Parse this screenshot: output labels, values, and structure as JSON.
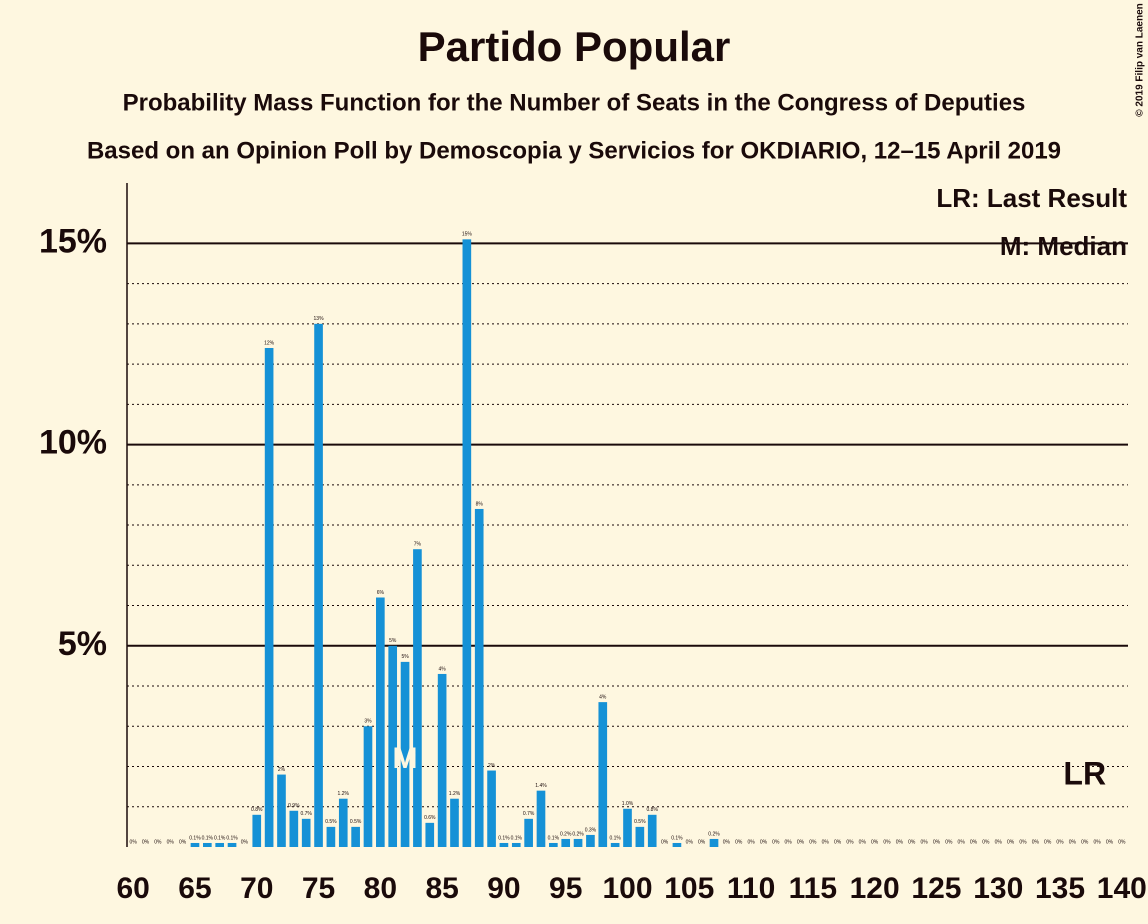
{
  "chart_data": {
    "type": "bar",
    "title": "Partido Popular",
    "subtitle": "Probability Mass Function for the Number of Seats in the Congress of Deputies",
    "subtitle2": "Based on an Opinion Poll by Demoscopia y Servicios for OKDIARIO, 12–15 April 2019",
    "copyright": "© 2019 Filip van Laenen",
    "legend_lr": "LR: Last Result",
    "legend_median": "M: Median",
    "median": 82,
    "median_label": "M",
    "last_result": 137,
    "last_result_label": "LR",
    "color": "#1591d6",
    "x": [
      60,
      61,
      62,
      63,
      64,
      65,
      66,
      67,
      68,
      69,
      70,
      71,
      72,
      73,
      74,
      75,
      76,
      77,
      78,
      79,
      80,
      81,
      82,
      83,
      84,
      85,
      86,
      87,
      88,
      89,
      90,
      91,
      92,
      93,
      94,
      95,
      96,
      97,
      98,
      99,
      100,
      101,
      102,
      103,
      104,
      105,
      106,
      107,
      108,
      109,
      110,
      111,
      112,
      113,
      114,
      115,
      116,
      117,
      118,
      119,
      120,
      121,
      122,
      123,
      124,
      125,
      126,
      127,
      128,
      129,
      130,
      131,
      132,
      133,
      134,
      135,
      136,
      137,
      138,
      139,
      140
    ],
    "values": [
      0,
      0,
      0,
      0,
      0,
      0.1,
      0.1,
      0.1,
      0.1,
      0,
      0.8,
      12.4,
      1.8,
      0.9,
      0.7,
      13,
      0.5,
      1.2,
      0.5,
      3,
      6.2,
      5,
      4.6,
      7.4,
      0.6,
      4.3,
      1.2,
      15.1,
      8.4,
      1.9,
      0.1,
      0.1,
      0.7,
      1.4,
      0.1,
      0.2,
      0.2,
      0.3,
      3.6,
      0.1,
      0.95,
      0.5,
      0.8,
      0,
      0.1,
      0,
      0,
      0.2,
      0,
      0,
      0,
      0,
      0,
      0,
      0,
      0,
      0,
      0,
      0,
      0,
      0,
      0,
      0,
      0,
      0,
      0,
      0,
      0,
      0,
      0,
      0,
      0,
      0,
      0,
      0,
      0,
      0,
      0,
      0,
      0,
      0
    ],
    "value_labels": [
      "0%",
      "0%",
      "0%",
      "0%",
      "0%",
      "0.1%",
      "0.1%",
      "0.1%",
      "0.1%",
      "0%",
      "0.8%",
      "12%",
      "2%",
      "0.9%",
      "0.7%",
      "13%",
      "0.5%",
      "1.2%",
      "0.5%",
      "3%",
      "6%",
      "5%",
      "5%",
      "7%",
      "0.6%",
      "4%",
      "1.2%",
      "15%",
      "8%",
      "2%",
      "0.1%",
      "0.1%",
      "0.7%",
      "1.4%",
      "0.1%",
      "0.2%",
      "0.2%",
      "0.3%",
      "4%",
      "0.1%",
      "1.0%",
      "0.5%",
      "0.8%",
      "0%",
      "0.1%",
      "0%",
      "0%",
      "0.2%",
      "0%",
      "0%",
      "0%",
      "0%",
      "0%",
      "0%",
      "0%",
      "0%",
      "0%",
      "0%",
      "0%",
      "0%",
      "0%",
      "0%",
      "0%",
      "0%",
      "0%",
      "0%",
      "0%",
      "0%",
      "0%",
      "0%",
      "0%",
      "0%",
      "0%",
      "0%",
      "0%",
      "0%",
      "0%",
      "0%",
      "0%",
      "0%",
      "0%"
    ],
    "xlim": [
      59.5,
      140.5
    ],
    "xticks": [
      60,
      65,
      70,
      75,
      80,
      85,
      90,
      95,
      100,
      105,
      110,
      115,
      120,
      125,
      130,
      135,
      140
    ],
    "ylim": [
      0,
      16.5
    ],
    "yticks": [
      {
        "value": 5,
        "label": "5%"
      },
      {
        "value": 10,
        "label": "10%"
      },
      {
        "value": 15,
        "label": "15%"
      }
    ],
    "minor_yticks": [
      1,
      2,
      3,
      4,
      6,
      7,
      8,
      9,
      11,
      12,
      13,
      14
    ],
    "grid": true
  }
}
